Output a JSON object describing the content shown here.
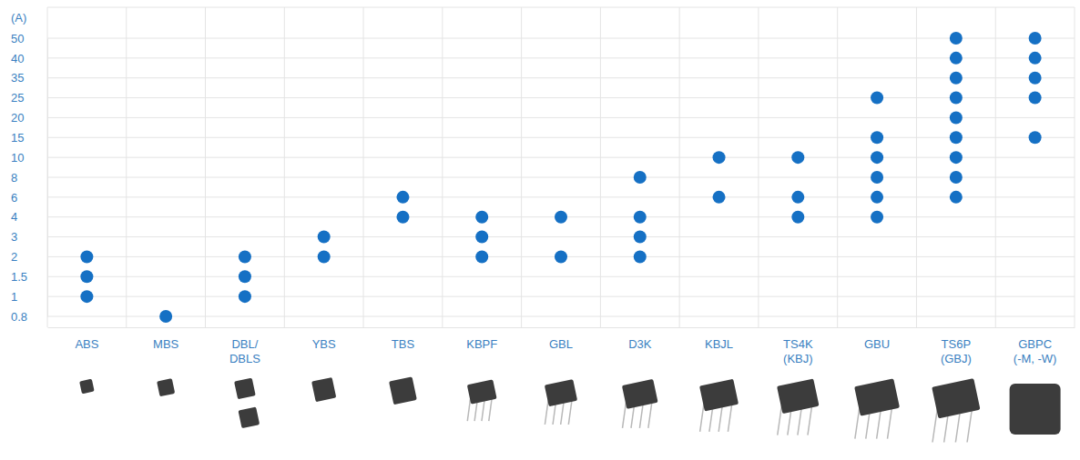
{
  "chart_data": {
    "type": "scatter",
    "y_label": "(A)",
    "categories": [
      "ABS",
      "MBS",
      "DBL/DBLS",
      "YBS",
      "TBS",
      "KBPF",
      "GBL",
      "D3K",
      "KBJL",
      "TS4K (KBJ)",
      "GBU",
      "TS6P (GBJ)",
      "GBPC (-M, -W)"
    ],
    "values": [
      [
        1,
        1.5,
        2
      ],
      [
        0.8
      ],
      [
        1,
        1.5,
        2
      ],
      [
        2,
        3
      ],
      [
        4,
        6
      ],
      [
        2,
        3,
        4
      ],
      [
        2,
        4
      ],
      [
        2,
        3,
        4,
        8
      ],
      [
        6,
        10
      ],
      [
        4,
        6,
        10
      ],
      [
        4,
        6,
        8,
        10,
        15,
        25
      ],
      [
        6,
        8,
        10,
        15,
        20,
        25,
        35,
        40,
        50
      ],
      [
        15,
        25,
        35,
        40,
        50
      ]
    ],
    "color": "#1570c4",
    "ylim": [
      0.8,
      50
    ],
    "yticks": [
      0.8,
      1,
      1.5,
      2,
      3,
      4,
      6,
      8,
      10,
      15,
      20,
      25,
      35,
      40,
      50
    ],
    "grid": true
  }
}
